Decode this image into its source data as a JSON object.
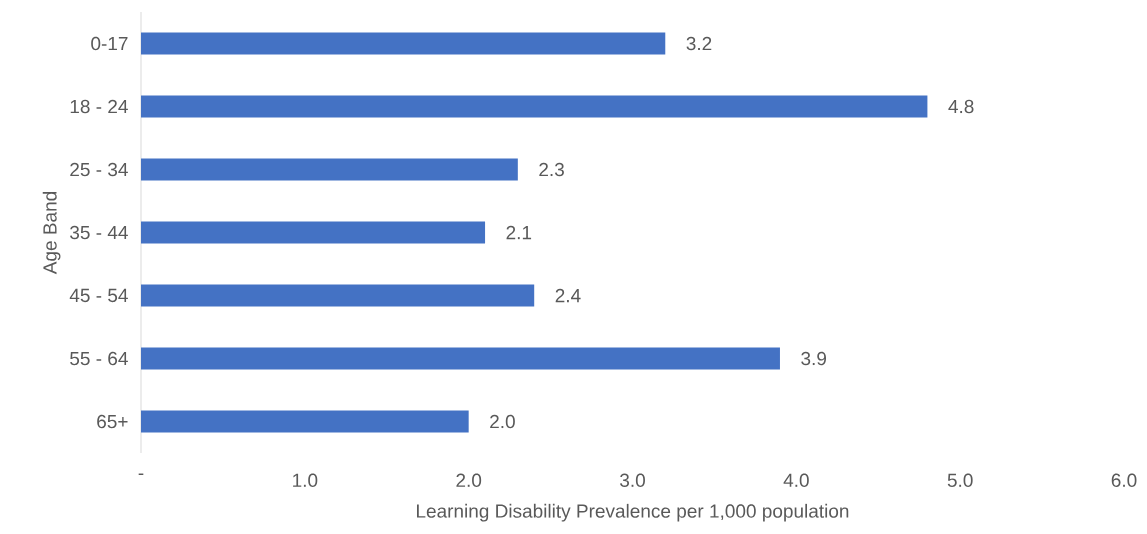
{
  "chart_data": {
    "type": "bar",
    "orientation": "horizontal",
    "categories": [
      "0-17",
      "18 - 24",
      "25 - 34",
      "35 - 44",
      "45 - 54",
      "55 - 64",
      "65+"
    ],
    "values": [
      3.2,
      4.8,
      2.3,
      2.1,
      2.4,
      3.9,
      2.0
    ],
    "value_labels": [
      "3.2",
      "4.8",
      "2.3",
      "2.1",
      "2.4",
      "3.9",
      "2.0"
    ],
    "color": "#4472c4",
    "xlim": [
      0,
      6
    ],
    "xticks": [
      {
        "value": 0,
        "label": "-"
      },
      {
        "value": 1,
        "label": "1.0"
      },
      {
        "value": 2,
        "label": "2.0"
      },
      {
        "value": 3,
        "label": "3.0"
      },
      {
        "value": 4,
        "label": "4.0"
      },
      {
        "value": 5,
        "label": "5.0"
      },
      {
        "value": 6,
        "label": "6.0"
      }
    ],
    "xlabel": "Learning Disability Prevalence per 1,000 population",
    "ylabel": "Age Band"
  }
}
